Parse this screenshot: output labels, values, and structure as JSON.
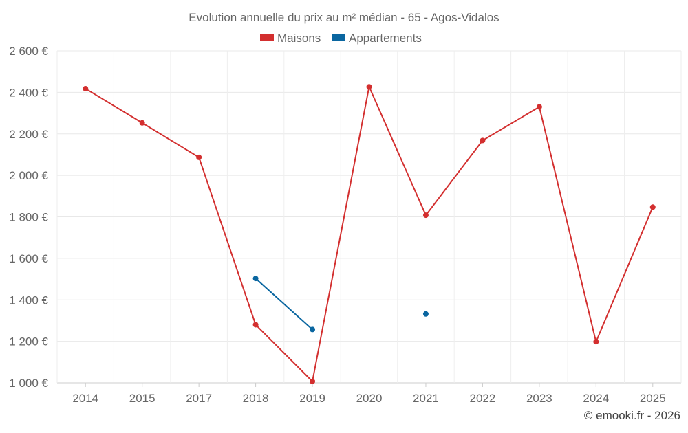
{
  "chart_data": {
    "type": "line",
    "title": "Evolution annuelle du prix au m² médian - 65 - Agos-Vidalos",
    "categories": [
      "2014",
      "2015",
      "2017",
      "2018",
      "2019",
      "2020",
      "2021",
      "2022",
      "2023",
      "2024",
      "2025"
    ],
    "series": [
      {
        "name": "Maisons",
        "color": "#d32f2f",
        "values": [
          2418,
          2253,
          2087,
          1280,
          1007,
          2427,
          1808,
          2168,
          2330,
          1198,
          1847
        ]
      },
      {
        "name": "Appartements",
        "color": "#0a66a0",
        "values": [
          null,
          null,
          null,
          1503,
          1257,
          null,
          1332,
          null,
          null,
          null,
          null
        ]
      }
    ],
    "ylim": [
      1000,
      2600
    ],
    "yticks": [
      1000,
      1200,
      1400,
      1600,
      1800,
      2000,
      2200,
      2400,
      2600
    ],
    "ytick_labels": [
      "1 000 €",
      "1 200 €",
      "1 400 €",
      "1 600 €",
      "1 800 €",
      "2 000 €",
      "2 200 €",
      "2 400 €",
      "2 600 €"
    ],
    "xlabel": "",
    "ylabel": "",
    "grid": true,
    "legend_position": "top-center"
  },
  "footer": {
    "credit": "© emooki.fr - 2026"
  }
}
